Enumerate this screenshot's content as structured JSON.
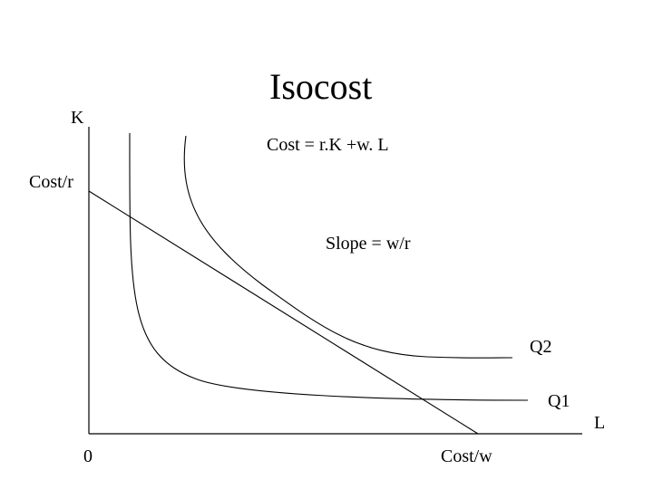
{
  "title": "Isocost",
  "axes": {
    "y_label": "K",
    "x_label": "L",
    "origin_label": "0",
    "y_intercept_label": "Cost/r",
    "x_intercept_label": "Cost/w"
  },
  "annotations": {
    "cost_equation": "Cost = r.K +w. L",
    "slope": "Slope = w/r"
  },
  "curves": [
    {
      "id": "Q1",
      "label": "Q1"
    },
    {
      "id": "Q2",
      "label": "Q2"
    }
  ],
  "colors": {
    "background": "#ffffff",
    "ink": "#000000"
  }
}
